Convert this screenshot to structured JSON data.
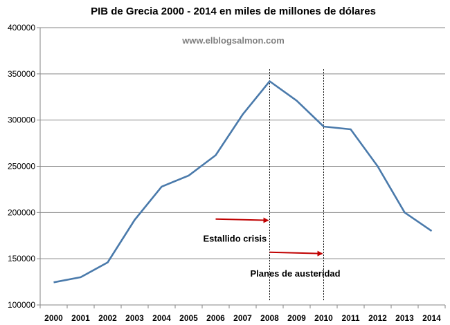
{
  "chart_data": {
    "type": "line",
    "title": "PIB de Grecia 2000 - 2014 en miles de millones de dólares",
    "watermark": "www.elblogsalmon.com",
    "x": [
      "2000",
      "2001",
      "2002",
      "2003",
      "2004",
      "2005",
      "2006",
      "2007",
      "2008",
      "2009",
      "2010",
      "2011",
      "2012",
      "2013",
      "2014"
    ],
    "series": [
      {
        "values": [
          124500,
          130000,
          146000,
          192000,
          228000,
          240000,
          262000,
          306000,
          342000,
          321000,
          293000,
          290000,
          250000,
          200000,
          180000
        ]
      }
    ],
    "ylim": [
      100000,
      400000
    ],
    "yticks": [
      100000,
      150000,
      200000,
      250000,
      300000,
      350000,
      400000
    ],
    "ytick_labels": [
      "100000",
      "150000",
      "200000",
      "250000",
      "300000",
      "350000",
      "400000"
    ],
    "grid": true,
    "line_color": "#4a7aab",
    "annotation_color": "#c00000",
    "annotations": [
      {
        "label": "Estallido crisis",
        "at_x": "2008",
        "arrow_from_x": 2006.0,
        "arrow_to_x": 2008.0,
        "arrow_y": 193000
      },
      {
        "label": "Planes de austeridad",
        "at_x": "2010",
        "arrow_from_x": 2008.0,
        "arrow_to_x": 2010.0,
        "arrow_y": 157000
      }
    ]
  }
}
